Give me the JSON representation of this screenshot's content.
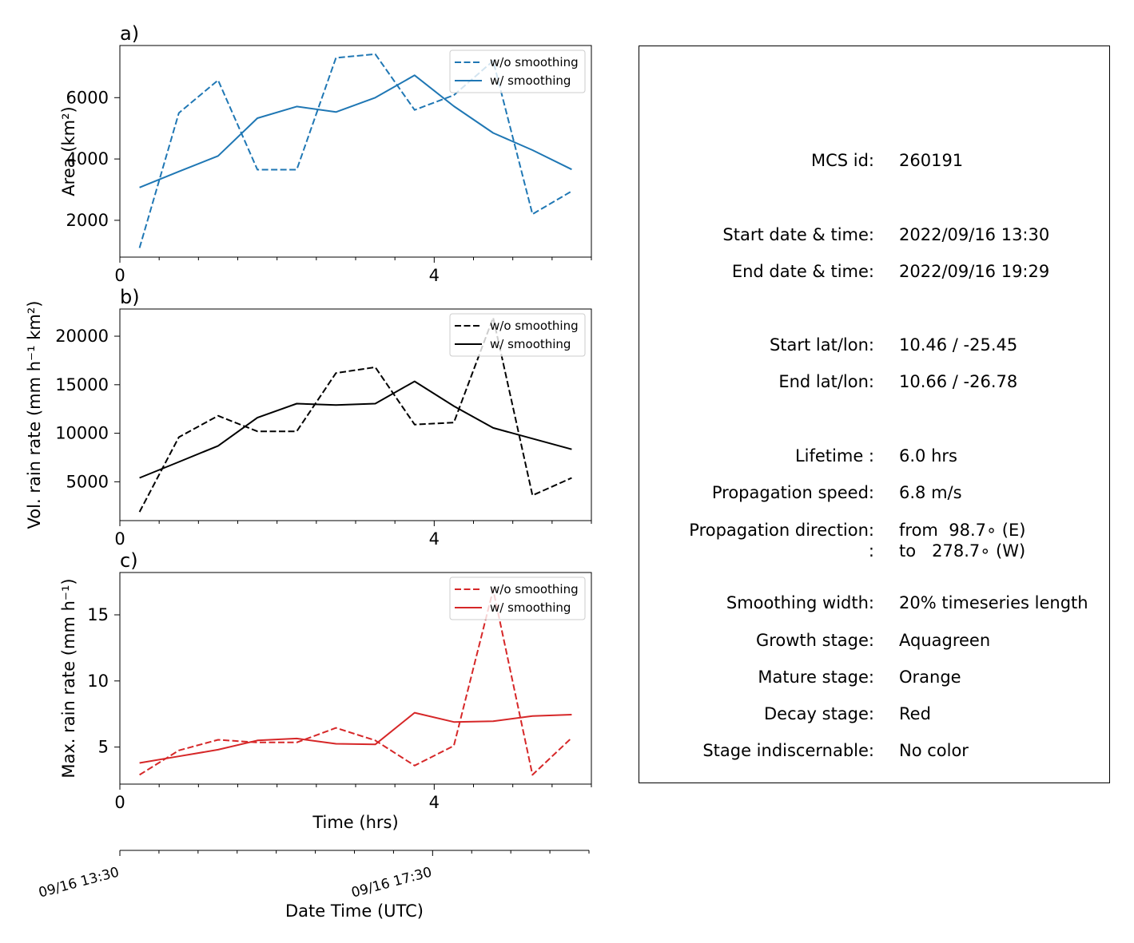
{
  "figure": {
    "time_axis_label": "Time (hrs)",
    "datetime_axis_label": "Date Time (UTC)",
    "datetime_ticks": [
      {
        "hours": 0,
        "label": "09/16 13:30"
      },
      {
        "hours": 4,
        "label": "09/16 17:30"
      }
    ],
    "datetime_axis_xlim": [
      0,
      6
    ]
  },
  "chart_data": [
    {
      "type": "line",
      "panel_label": "a)",
      "ylabel": "Area  (km²)",
      "x": [
        0.25,
        0.75,
        1.25,
        1.75,
        2.25,
        2.75,
        3.25,
        3.75,
        4.25,
        4.75,
        5.25,
        5.75
      ],
      "xlim": [
        0,
        6
      ],
      "xticks": [
        0,
        4
      ],
      "ylim": [
        800,
        7700
      ],
      "yticks": [
        2000,
        4000,
        6000
      ],
      "color": "#1f77b4",
      "legend_position": "upper right",
      "series": [
        {
          "name": "w/o smoothing",
          "style": "dashed",
          "values": [
            1100,
            5500,
            6570,
            3650,
            3650,
            7300,
            7420,
            5600,
            6080,
            7200,
            2200,
            2950
          ]
        },
        {
          "name": "w/ smoothing",
          "style": "solid",
          "values": [
            3070,
            3590,
            4100,
            5330,
            5710,
            5530,
            6000,
            6730,
            5720,
            4850,
            4290,
            3660
          ]
        }
      ]
    },
    {
      "type": "line",
      "panel_label": "b)",
      "ylabel": "Vol. rain rate (mm h⁻¹ km²)",
      "x": [
        0.25,
        0.75,
        1.25,
        1.75,
        2.25,
        2.75,
        3.25,
        3.75,
        4.25,
        4.75,
        5.25,
        5.75
      ],
      "xlim": [
        0,
        6
      ],
      "xticks": [
        0,
        4
      ],
      "ylim": [
        1000,
        22800
      ],
      "yticks": [
        5000,
        10000,
        15000,
        20000
      ],
      "color": "#000000",
      "legend_position": "upper right",
      "series": [
        {
          "name": "w/o smoothing",
          "style": "dashed",
          "values": [
            1900,
            9600,
            11800,
            10200,
            10200,
            16200,
            16800,
            10900,
            11100,
            21900,
            3600,
            5400
          ]
        },
        {
          "name": "w/ smoothing",
          "style": "solid",
          "values": [
            5400,
            7050,
            8700,
            11600,
            13050,
            12900,
            13050,
            15350,
            12800,
            10550,
            9450,
            8350
          ]
        }
      ]
    },
    {
      "type": "line",
      "panel_label": "c)",
      "ylabel": "Max. rain rate  (mm h⁻¹)",
      "x": [
        0.25,
        0.75,
        1.25,
        1.75,
        2.25,
        2.75,
        3.25,
        3.75,
        4.25,
        4.75,
        5.25,
        5.75
      ],
      "xlim": [
        0,
        6
      ],
      "xticks": [
        0,
        4
      ],
      "ylim": [
        2.2,
        18.2
      ],
      "yticks": [
        5,
        10,
        15
      ],
      "color": "#d62728",
      "legend_position": "upper right",
      "series": [
        {
          "name": "w/o smoothing",
          "style": "dashed",
          "values": [
            2.9,
            4.75,
            5.55,
            5.35,
            5.35,
            6.45,
            5.5,
            3.6,
            5.1,
            16.9,
            2.9,
            5.7
          ]
        },
        {
          "name": "w/ smoothing",
          "style": "solid",
          "values": [
            3.8,
            4.3,
            4.8,
            5.5,
            5.65,
            5.25,
            5.2,
            7.6,
            6.9,
            6.95,
            7.35,
            7.45
          ]
        }
      ]
    }
  ],
  "info_panel": {
    "rows": [
      {
        "label": "MCS id:",
        "value": "260191"
      },
      {
        "label": "Start date & time:",
        "value": "2022/09/16 13:30"
      },
      {
        "label": "End date & time:",
        "value": "2022/09/16 19:29"
      },
      {
        "label": "Start lat/lon:",
        "value": "10.46 / -25.45"
      },
      {
        "label": "End lat/lon:",
        "value": "10.66 / -26.78"
      },
      {
        "label": "Lifetime :",
        "value": "6.0 hrs"
      },
      {
        "label": "Propagation speed:",
        "value": "6.8 m/s"
      },
      {
        "label": "Propagation direction:",
        "value": "from  98.7∘ (E)"
      },
      {
        "label": ":",
        "value": "to   278.7∘ (W)"
      },
      {
        "label": "Smoothing width:",
        "value": "20% timeseries length"
      },
      {
        "label": "Growth stage:",
        "value": "Aquagreen"
      },
      {
        "label": "Mature stage:",
        "value": "Orange"
      },
      {
        "label": "Decay stage:",
        "value": "Red"
      },
      {
        "label": "Stage indiscernable:",
        "value": "No color"
      }
    ]
  }
}
